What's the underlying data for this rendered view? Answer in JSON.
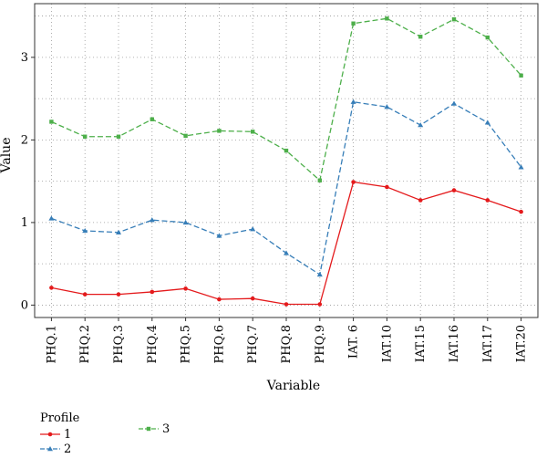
{
  "chart_data": {
    "type": "line",
    "xlabel": "Variable",
    "ylabel": "Value",
    "categories": [
      "PHQ.1",
      "PHQ.2",
      "PHQ.3",
      "PHQ.4",
      "PHQ.5",
      "PHQ.6",
      "PHQ.7",
      "PHQ.8",
      "PHQ.9",
      "IAT. 6",
      "IAT.10",
      "IAT.15",
      "IAT.16",
      "IAT.17",
      "IAT.20"
    ],
    "ylim": [
      -0.15,
      3.65
    ],
    "yticks": [
      0,
      1,
      2,
      3
    ],
    "grid": true,
    "legend_position": "bottom-left",
    "legend_title": "Profile",
    "series": [
      {
        "name": "1",
        "color": "#e41a1c",
        "dash": "solid",
        "marker": "circle",
        "values": [
          0.21,
          0.13,
          0.13,
          0.16,
          0.2,
          0.07,
          0.08,
          0.01,
          0.01,
          1.49,
          1.43,
          1.27,
          1.39,
          1.27,
          1.13
        ]
      },
      {
        "name": "2",
        "color": "#377eb8",
        "dash": "dashed",
        "marker": "triangle",
        "values": [
          1.05,
          0.9,
          0.88,
          1.03,
          1.0,
          0.84,
          0.92,
          0.63,
          0.37,
          2.46,
          2.4,
          2.18,
          2.44,
          2.21,
          1.67
        ]
      },
      {
        "name": "3",
        "color": "#4daf4a",
        "dash": "dashed",
        "marker": "square",
        "values": [
          2.22,
          2.04,
          2.04,
          2.25,
          2.05,
          2.11,
          2.1,
          1.87,
          1.51,
          3.41,
          3.47,
          3.25,
          3.46,
          3.24,
          2.78
        ]
      }
    ]
  }
}
